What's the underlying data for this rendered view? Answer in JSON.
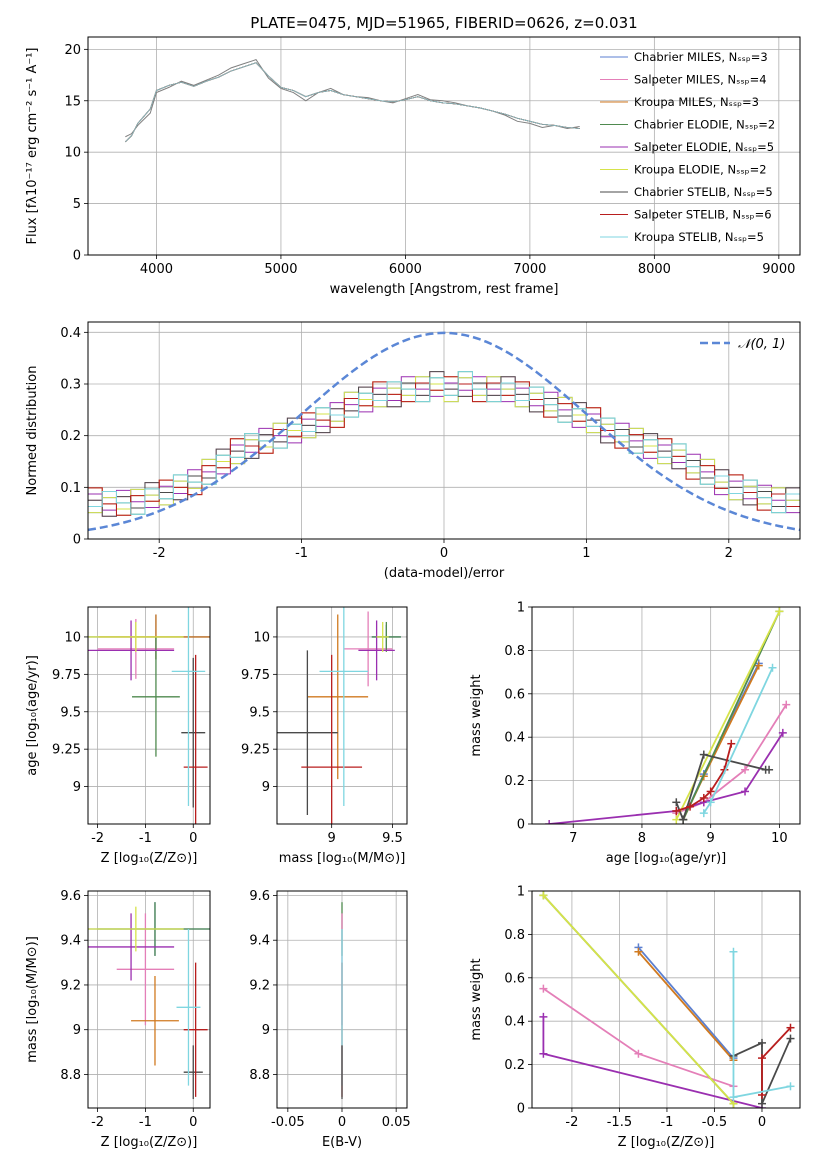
{
  "colors": [
    "#5b7fd0",
    "#e47fb8",
    "#d07a20",
    "#4f8a4f",
    "#9a2fb0",
    "#d6e34a",
    "#4a4a4a",
    "#b81e1e",
    "#7fd6e0"
  ],
  "chart_data": [
    {
      "id": "spectrum",
      "type": "line",
      "title": "PLATE=0475, MJD=51965, FIBERID=0626, z=0.031",
      "xlabel": "wavelength [Angstrom, rest frame]",
      "ylabel": "Flux [fλ10⁻¹⁷ erg cm⁻² s⁻¹ A⁻¹]",
      "xlim": [
        3450,
        9170
      ],
      "ylim": [
        0,
        21.2
      ],
      "xticks": [
        4000,
        5000,
        6000,
        7000,
        8000,
        9000
      ],
      "yticks": [
        0,
        5,
        10,
        15,
        20
      ],
      "legend_position": "upper-right",
      "series": [
        {
          "name": "Chabrier MILES, Nₛₛₚ=3"
        },
        {
          "name": "Salpeter MILES, Nₛₛₚ=4"
        },
        {
          "name": "Kroupa MILES, Nₛₛₚ=3"
        },
        {
          "name": "Chabrier ELODIE, Nₛₛₚ=2"
        },
        {
          "name": "Salpeter ELODIE, Nₛₛₚ=5"
        },
        {
          "name": "Kroupa ELODIE, Nₛₛₚ=2"
        },
        {
          "name": "Chabrier STELIB, Nₛₛₚ=5"
        },
        {
          "name": "Salpeter STELIB, Nₛₛₚ=6"
        },
        {
          "name": "Kroupa STELIB, Nₛₛₚ=5"
        }
      ],
      "data_x": [
        3750,
        3800,
        3850,
        3900,
        3950,
        4000,
        4100,
        4200,
        4300,
        4400,
        4500,
        4600,
        4700,
        4800,
        4900,
        5000,
        5100,
        5200,
        5300,
        5400,
        5500,
        5600,
        5700,
        5800,
        5900,
        6000,
        6100,
        6200,
        6300,
        6400,
        6500,
        6600,
        6700,
        6800,
        6900,
        7000,
        7100,
        7200,
        7300,
        7400
      ],
      "data_y": [
        11.5,
        11.8,
        12.6,
        13.2,
        13.8,
        15.8,
        16.3,
        16.9,
        16.5,
        17.0,
        17.5,
        18.2,
        18.6,
        19.0,
        17.2,
        16.2,
        15.8,
        15.0,
        15.8,
        16.2,
        15.6,
        15.4,
        15.3,
        15.0,
        14.8,
        15.2,
        15.6,
        15.1,
        15.0,
        14.8,
        14.5,
        14.3,
        14.0,
        13.6,
        13.0,
        12.8,
        12.4,
        12.6,
        12.3,
        12.5
      ],
      "model_x": [
        3750,
        3800,
        3850,
        3900,
        3950,
        4000,
        4100,
        4200,
        4300,
        4400,
        4500,
        4600,
        4700,
        4800,
        4900,
        5000,
        5100,
        5200,
        5300,
        5400,
        5500,
        5600,
        5700,
        5800,
        5900,
        6000,
        6100,
        6200,
        6300,
        6400,
        6500,
        6600,
        6700,
        6800,
        6900,
        7000,
        7100,
        7200,
        7300,
        7400
      ],
      "model_y": [
        11.0,
        11.6,
        12.8,
        13.5,
        14.2,
        16.0,
        16.5,
        16.8,
        16.4,
        16.9,
        17.3,
        17.9,
        18.3,
        18.7,
        17.4,
        16.3,
        16.0,
        15.4,
        15.8,
        16.0,
        15.6,
        15.4,
        15.2,
        15.0,
        14.9,
        15.1,
        15.4,
        15.0,
        14.8,
        14.7,
        14.5,
        14.3,
        14.0,
        13.7,
        13.3,
        13.0,
        12.7,
        12.6,
        12.4,
        12.3
      ]
    },
    {
      "id": "residuals",
      "type": "bar",
      "xlabel": "(data-model)/error",
      "ylabel": "Normed distribution",
      "xlim": [
        -2.5,
        2.5
      ],
      "ylim": [
        0,
        0.42
      ],
      "xticks": [
        -2,
        -1,
        0,
        1,
        2
      ],
      "yticks": [
        0.0,
        0.1,
        0.2,
        0.3,
        0.4
      ],
      "reference_curve": {
        "name": "𝒩(0, 1)",
        "mean": 0,
        "sigma": 1
      },
      "bin_edges": [
        -2.5,
        -2.4,
        -2.3,
        -2.2,
        -2.1,
        -2.0,
        -1.9,
        -1.8,
        -1.7,
        -1.6,
        -1.5,
        -1.4,
        -1.3,
        -1.2,
        -1.1,
        -1.0,
        -0.9,
        -0.8,
        -0.7,
        -0.6,
        -0.5,
        -0.4,
        -0.3,
        -0.2,
        -0.1,
        0.0,
        0.1,
        0.2,
        0.3,
        0.4,
        0.5,
        0.6,
        0.7,
        0.8,
        0.9,
        1.0,
        1.1,
        1.2,
        1.3,
        1.4,
        1.5,
        1.6,
        1.7,
        1.8,
        1.9,
        2.0,
        2.1,
        2.2,
        2.3,
        2.4,
        2.5
      ],
      "histogram": [
        0.075,
        0.068,
        0.07,
        0.072,
        0.085,
        0.09,
        0.1,
        0.11,
        0.13,
        0.15,
        0.17,
        0.18,
        0.19,
        0.2,
        0.21,
        0.22,
        0.23,
        0.24,
        0.26,
        0.27,
        0.28,
        0.28,
        0.29,
        0.29,
        0.3,
        0.29,
        0.3,
        0.29,
        0.29,
        0.29,
        0.28,
        0.27,
        0.26,
        0.25,
        0.24,
        0.23,
        0.21,
        0.2,
        0.19,
        0.18,
        0.17,
        0.16,
        0.14,
        0.13,
        0.11,
        0.1,
        0.09,
        0.08,
        0.075,
        0.075
      ]
    },
    {
      "id": "age-vs-Z",
      "type": "scatter",
      "xlabel": "Z [log₁₀(Z/Z⊙)]",
      "ylabel": "age  [log₁₀(age/yr)]",
      "xlim": [
        -2.2,
        0.35
      ],
      "ylim": [
        8.75,
        10.2
      ],
      "xticks": [
        -2,
        -1,
        0
      ],
      "yticks": [
        9.0,
        9.25,
        9.5,
        9.75,
        10.0
      ],
      "points": [
        {
          "x": -0.78,
          "y": 10.0,
          "xerr": 1.5,
          "yerr": 0.15,
          "series": 0
        },
        {
          "x": -1.2,
          "y": 9.92,
          "xerr": 0.8,
          "yerr": 0.2,
          "series": 1
        },
        {
          "x": -0.78,
          "y": 10.0,
          "xerr": 1.2,
          "yerr": 0.15,
          "series": 2
        },
        {
          "x": -0.78,
          "y": 9.6,
          "xerr": 0.5,
          "yerr": 0.4,
          "series": 3
        },
        {
          "x": -1.3,
          "y": 9.91,
          "xerr": 0.9,
          "yerr": 0.2,
          "series": 4
        },
        {
          "x": -1.2,
          "y": 10.0,
          "xerr": 1.0,
          "yerr": 0.1,
          "series": 5
        },
        {
          "x": 0.0,
          "y": 9.36,
          "xerr": 0.25,
          "yerr": 0.5,
          "series": 6
        },
        {
          "x": 0.05,
          "y": 9.13,
          "xerr": 0.25,
          "yerr": 0.75,
          "series": 7
        },
        {
          "x": -0.1,
          "y": 9.77,
          "xerr": 0.35,
          "yerr": 0.9,
          "series": 8
        }
      ]
    },
    {
      "id": "age-vs-mass",
      "type": "scatter",
      "xlabel": "mass [log₁₀(M/M⊙)]",
      "ylabel": "",
      "xlim": [
        8.55,
        9.62
      ],
      "ylim": [
        8.75,
        10.2
      ],
      "xticks": [
        9.0,
        9.5
      ],
      "yticks": [
        9.0,
        9.25,
        9.5,
        9.75,
        10.0
      ],
      "points": [
        {
          "x": 9.45,
          "y": 10.0,
          "xerr": 0.12,
          "yerr": 0.08,
          "series": 0
        },
        {
          "x": 9.3,
          "y": 9.92,
          "xerr": 0.2,
          "yerr": 0.25,
          "series": 1
        },
        {
          "x": 9.05,
          "y": 9.6,
          "xerr": 0.25,
          "yerr": 0.55,
          "series": 2
        },
        {
          "x": 9.45,
          "y": 10.0,
          "xerr": 0.12,
          "yerr": 0.1,
          "series": 3
        },
        {
          "x": 9.37,
          "y": 9.91,
          "xerr": 0.15,
          "yerr": 0.2,
          "series": 4
        },
        {
          "x": 9.42,
          "y": 10.0,
          "xerr": 0.05,
          "yerr": 0.1,
          "series": 5
        },
        {
          "x": 8.8,
          "y": 9.36,
          "xerr": 0.25,
          "yerr": 0.55,
          "series": 6
        },
        {
          "x": 9.0,
          "y": 9.13,
          "xerr": 0.25,
          "yerr": 0.75,
          "series": 7
        },
        {
          "x": 9.1,
          "y": 9.77,
          "xerr": 0.2,
          "yerr": 0.9,
          "series": 8
        }
      ]
    },
    {
      "id": "mass-weight-vs-age",
      "type": "line",
      "xlabel": "age  [log₁₀(age/yr)]",
      "ylabel": "mass weight",
      "xlim": [
        6.4,
        10.3
      ],
      "ylim": [
        0,
        1.0
      ],
      "xticks": [
        7,
        8,
        9,
        10
      ],
      "yticks": [
        0.0,
        0.2,
        0.4,
        0.6,
        0.8,
        1.0
      ],
      "series": [
        {
          "x": [
            8.6,
            8.9,
            9.7
          ],
          "y": [
            0.02,
            0.23,
            0.74
          ],
          "series": 0
        },
        {
          "x": [
            8.5,
            8.9,
            9.5,
            10.1
          ],
          "y": [
            0.05,
            0.1,
            0.25,
            0.55
          ],
          "series": 1
        },
        {
          "x": [
            8.6,
            8.9,
            9.7
          ],
          "y": [
            0.02,
            0.22,
            0.73
          ],
          "series": 2
        },
        {
          "x": [
            8.6,
            10.0
          ],
          "y": [
            0.02,
            0.98
          ],
          "series": 3
        },
        {
          "x": [
            6.65,
            8.5,
            8.9,
            9.5,
            10.05
          ],
          "y": [
            0.0,
            0.06,
            0.1,
            0.15,
            0.42
          ],
          "series": 4
        },
        {
          "x": [
            8.5,
            10.0
          ],
          "y": [
            0.02,
            0.98
          ],
          "series": 5
        },
        {
          "x": [
            8.5,
            8.6,
            8.9,
            9.8,
            9.85
          ],
          "y": [
            0.1,
            0.02,
            0.32,
            0.25,
            0.25
          ],
          "series": 6
        },
        {
          "x": [
            8.5,
            8.7,
            8.9,
            9.0,
            9.2,
            9.3
          ],
          "y": [
            0.06,
            0.08,
            0.12,
            0.15,
            0.25,
            0.37
          ],
          "series": 7
        },
        {
          "x": [
            8.9,
            9.0,
            9.9
          ],
          "y": [
            0.05,
            0.1,
            0.72
          ],
          "series": 8
        }
      ]
    },
    {
      "id": "mass-vs-Z",
      "type": "scatter",
      "xlabel": "Z [log₁₀(Z/Z⊙)]",
      "ylabel": "mass [log₁₀(M/M⊙)]",
      "xlim": [
        -2.2,
        0.35
      ],
      "ylim": [
        8.65,
        9.62
      ],
      "xticks": [
        -2,
        -1,
        0
      ],
      "yticks": [
        8.8,
        9.0,
        9.2,
        9.4,
        9.6
      ],
      "points": [
        {
          "x": -0.8,
          "y": 9.45,
          "xerr": 1.5,
          "yerr": 0.12,
          "series": 0
        },
        {
          "x": -1.0,
          "y": 9.27,
          "xerr": 0.6,
          "yerr": 0.25,
          "series": 1
        },
        {
          "x": -0.8,
          "y": 9.04,
          "xerr": 0.5,
          "yerr": 0.2,
          "series": 2
        },
        {
          "x": -0.8,
          "y": 9.45,
          "xerr": 1.2,
          "yerr": 0.12,
          "series": 3
        },
        {
          "x": -1.3,
          "y": 9.37,
          "xerr": 0.9,
          "yerr": 0.15,
          "series": 4
        },
        {
          "x": -1.2,
          "y": 9.45,
          "xerr": 1.0,
          "yerr": 0.1,
          "series": 5
        },
        {
          "x": 0.0,
          "y": 8.81,
          "xerr": 0.2,
          "yerr": 0.12,
          "series": 6
        },
        {
          "x": 0.05,
          "y": 9.0,
          "xerr": 0.25,
          "yerr": 0.3,
          "series": 7
        },
        {
          "x": -0.1,
          "y": 9.1,
          "xerr": 0.25,
          "yerr": 0.35,
          "series": 8
        }
      ]
    },
    {
      "id": "mass-vs-ebv",
      "type": "scatter",
      "xlabel": "E(B-V)",
      "ylabel": "",
      "xlim": [
        -0.06,
        0.06
      ],
      "ylim": [
        8.65,
        9.62
      ],
      "xticks": [
        -0.05,
        0.0,
        0.05
      ],
      "yticks": [
        8.8,
        9.0,
        9.2,
        9.4,
        9.6
      ],
      "points": [
        {
          "x": 0.0,
          "y": 9.45,
          "yerr": 0.12,
          "series": 3
        },
        {
          "x": 0.0,
          "y": 9.27,
          "yerr": 0.25,
          "series": 1
        },
        {
          "x": 0.0,
          "y": 9.0,
          "yerr": 0.3,
          "series": 7
        },
        {
          "x": 0.0,
          "y": 9.1,
          "yerr": 0.35,
          "series": 8
        },
        {
          "x": 0.0,
          "y": 8.81,
          "yerr": 0.12,
          "series": 6
        }
      ]
    },
    {
      "id": "mass-weight-vs-Z",
      "type": "line",
      "xlabel": "Z [log₁₀(Z/Z⊙)]",
      "ylabel": "mass weight",
      "xlim": [
        -2.42,
        0.4
      ],
      "ylim": [
        0,
        1.0
      ],
      "xticks": [
        -2.0,
        -1.5,
        -1.0,
        -0.5,
        0.0
      ],
      "yticks": [
        0.0,
        0.2,
        0.4,
        0.6,
        0.8,
        1.0
      ],
      "series": [
        {
          "x": [
            -1.3,
            -0.3
          ],
          "y": [
            0.74,
            0.23
          ],
          "series": 0
        },
        {
          "x": [
            -2.3,
            -1.3,
            -0.3
          ],
          "y": [
            0.55,
            0.25,
            0.1
          ],
          "series": 1
        },
        {
          "x": [
            -1.3,
            -0.3
          ],
          "y": [
            0.72,
            0.22
          ],
          "series": 2
        },
        {
          "x": [
            -2.3,
            -0.3
          ],
          "y": [
            0.98,
            0.02
          ],
          "series": 3
        },
        {
          "x": [
            -2.3,
            -2.3,
            0.0
          ],
          "y": [
            0.42,
            0.25,
            0.0
          ],
          "series": 4
        },
        {
          "x": [
            -2.3,
            -0.3
          ],
          "y": [
            0.98,
            0.02
          ],
          "series": 5
        },
        {
          "x": [
            -0.3,
            0.0,
            0.0,
            0.3
          ],
          "y": [
            0.24,
            0.3,
            0.02,
            0.32
          ],
          "series": 6
        },
        {
          "x": [
            0.0,
            0.0,
            0.3
          ],
          "y": [
            0.06,
            0.23,
            0.37
          ],
          "series": 7
        },
        {
          "x": [
            -0.3,
            -0.3,
            0.3
          ],
          "y": [
            0.72,
            0.05,
            0.1
          ],
          "series": 8
        }
      ]
    }
  ]
}
